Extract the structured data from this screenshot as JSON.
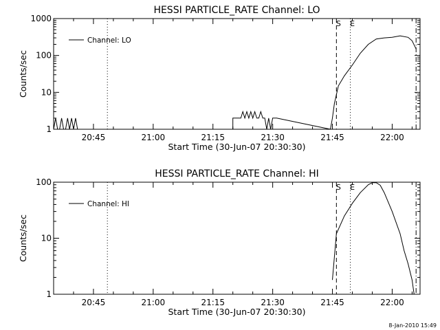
{
  "footer": {
    "timestamp": "8-Jan-2010 15:49"
  },
  "chart_data": [
    {
      "type": "line",
      "title": "HESSI PARTICLE_RATE Channel: LO",
      "xlabel": "Start Time (30-Jun-07 20:30:30)",
      "ylabel": "Counts/sec",
      "yscale": "log",
      "xlim": [
        "20:35:00",
        "22:07:00"
      ],
      "ylim": [
        1,
        1000
      ],
      "x_ticks": [
        "20:45",
        "21:00",
        "21:15",
        "21:30",
        "21:45",
        "22:00"
      ],
      "y_ticks": [
        "1",
        "10",
        "100",
        "1000"
      ],
      "legend": {
        "entries": [
          "Channel: LO"
        ],
        "position": "top-left"
      },
      "markers": [
        {
          "label": "",
          "time": "20:48:30",
          "style": "dotted"
        },
        {
          "label": "S",
          "time": "21:46:00",
          "style": "dashed"
        },
        {
          "label": "E",
          "time": "21:49:30",
          "style": "dotted"
        },
        {
          "label": "",
          "time": "22:06:00",
          "style": "dash-dot"
        }
      ],
      "series": [
        {
          "name": "Channel: LO",
          "x": [
            "20:35:00",
            "20:35:30",
            "20:36:00",
            "20:36:30",
            "20:37:00",
            "20:37:30",
            "20:38:00",
            "20:38:30",
            "20:39:00",
            "20:39:30",
            "20:40:00",
            "20:40:30",
            "20:41:00",
            "21:20:00",
            "21:20:00",
            "21:22:00",
            "21:22:30",
            "21:23:00",
            "21:23:30",
            "21:24:00",
            "21:24:30",
            "21:25:00",
            "21:25:30",
            "21:26:00",
            "21:26:30",
            "21:27:00",
            "21:27:30",
            "21:28:00",
            "21:28:30",
            "21:29:00",
            "21:29:30",
            "21:30:00",
            "21:31:00",
            "21:44:30",
            "21:45:00",
            "21:45:30",
            "21:46:30",
            "21:48:00",
            "21:50:00",
            "21:52:00",
            "21:54:00",
            "21:56:00",
            "21:58:00",
            "22:00:00",
            "22:02:00",
            "22:04:00",
            "22:05:00",
            "22:06:00"
          ],
          "y": [
            1,
            2,
            1,
            1,
            2,
            1,
            1,
            2,
            1,
            2,
            1,
            2,
            1,
            1,
            2,
            2,
            3,
            2,
            3,
            2,
            3,
            2,
            3,
            2,
            2,
            3,
            2,
            2,
            1,
            2,
            1,
            2,
            2,
            1,
            2,
            5,
            15,
            28,
            55,
            115,
            200,
            280,
            300,
            310,
            340,
            310,
            250,
            150
          ]
        }
      ]
    },
    {
      "type": "line",
      "title": "HESSI PARTICLE_RATE Channel: HI",
      "xlabel": "Start Time (30-Jun-07 20:30:30)",
      "ylabel": "Counts/sec",
      "yscale": "log",
      "xlim": [
        "20:35:00",
        "22:07:00"
      ],
      "ylim": [
        1,
        100
      ],
      "x_ticks": [
        "20:45",
        "21:00",
        "21:15",
        "21:30",
        "21:45",
        "22:00"
      ],
      "y_ticks": [
        "1",
        "10",
        "100"
      ],
      "legend": {
        "entries": [
          "Channel: HI"
        ],
        "position": "top-left"
      },
      "markers": [
        {
          "label": "",
          "time": "20:48:30",
          "style": "dotted"
        },
        {
          "label": "S",
          "time": "21:46:00",
          "style": "dashed"
        },
        {
          "label": "E",
          "time": "21:49:30",
          "style": "dotted"
        },
        {
          "label": "",
          "time": "22:06:00",
          "style": "dash-dot"
        }
      ],
      "series": [
        {
          "name": "Channel: HI",
          "x": [
            "21:45:00",
            "21:46:00",
            "21:48:00",
            "21:50:00",
            "21:52:00",
            "21:54:00",
            "21:55:00",
            "21:56:00",
            "21:57:00",
            "21:58:00",
            "22:00:00",
            "22:02:00",
            "22:03:00",
            "22:04:00",
            "22:05:00",
            "22:05:30"
          ],
          "y": [
            1.8,
            12,
            25,
            42,
            65,
            90,
            98,
            98,
            88,
            65,
            30,
            12,
            6,
            3.5,
            1.8,
            1
          ]
        }
      ]
    }
  ]
}
